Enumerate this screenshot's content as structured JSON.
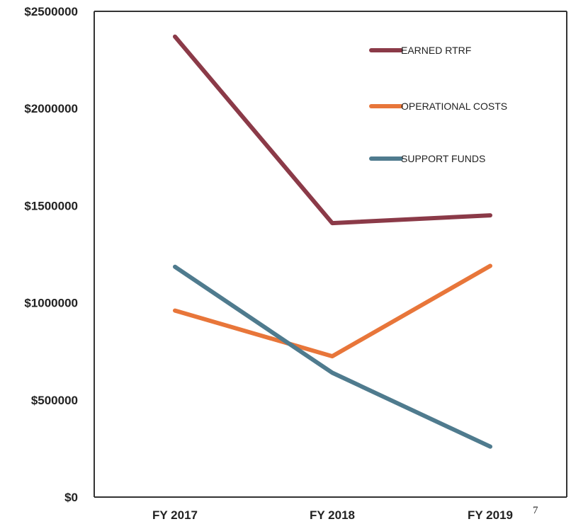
{
  "chart_data": {
    "type": "line",
    "title": "",
    "xlabel": "",
    "ylabel": "",
    "categories": [
      "FY 2017",
      "FY 2018",
      "FY 2019"
    ],
    "ylim": [
      0,
      2500000
    ],
    "yticks": [
      0,
      500000,
      1000000,
      1500000,
      2000000,
      2500000
    ],
    "ytick_labels": [
      "$0",
      "$500000",
      "$1000000",
      "$1500000",
      "$2000000",
      "$2500000"
    ],
    "grid": false,
    "legend_position": "top-right",
    "series": [
      {
        "name": "EARNED RTRF",
        "color": "#8b3a48",
        "values": [
          2370000,
          1410000,
          1450000
        ]
      },
      {
        "name": "OPERATIONAL COSTS",
        "color": "#e8763a",
        "values": [
          960000,
          725000,
          1190000
        ]
      },
      {
        "name": "SUPPORT FUNDS",
        "color": "#4f7b8e",
        "values": [
          1185000,
          640000,
          260000
        ]
      }
    ]
  },
  "page_number": "7"
}
